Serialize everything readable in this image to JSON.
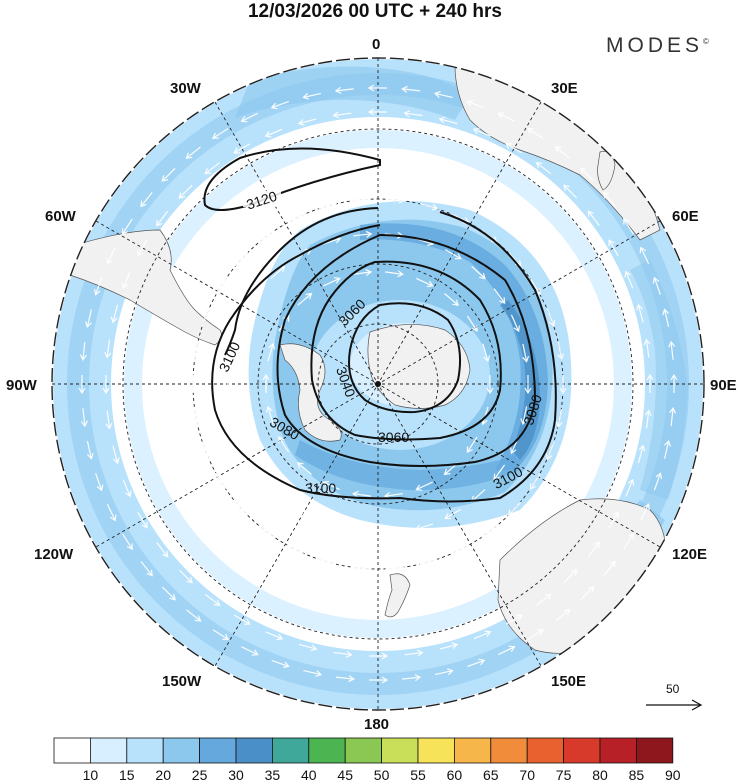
{
  "title": "12/03/2026  00 UTC  + 240 hrs",
  "brand": "MODES",
  "brand_mark": "©",
  "longitude_labels": [
    "0",
    "30E",
    "60E",
    "90E",
    "120E",
    "150E",
    "180",
    "150W",
    "120W",
    "90W",
    "60W",
    "30W"
  ],
  "contour_labels": [
    "3120",
    "3100",
    "3080",
    "3060",
    "3040",
    "3060",
    "3080",
    "3100",
    "3100"
  ],
  "colorbar": {
    "labels": [
      "10",
      "15",
      "20",
      "25",
      "30",
      "35",
      "40",
      "45",
      "50",
      "55",
      "60",
      "65",
      "70",
      "75",
      "80",
      "85",
      "90"
    ],
    "colors": [
      "#ffffff",
      "#d8efff",
      "#b8e1fb",
      "#8cc8ee",
      "#64a8dd",
      "#4a8fc7",
      "#40a89a",
      "#4cb552",
      "#8bc753",
      "#c9df5a",
      "#f7e35a",
      "#f6b64a",
      "#f08c3a",
      "#e9612e",
      "#d7392b",
      "#b82027",
      "#8e161d"
    ]
  },
  "vector_key": {
    "label": "50"
  },
  "colors": {
    "land": "#f1f1f1",
    "ocean": "#ffffff",
    "contour": "#111111",
    "grid": "#222222"
  },
  "icons": [
    "arrow-right-icon",
    "pole-dot-icon"
  ]
}
